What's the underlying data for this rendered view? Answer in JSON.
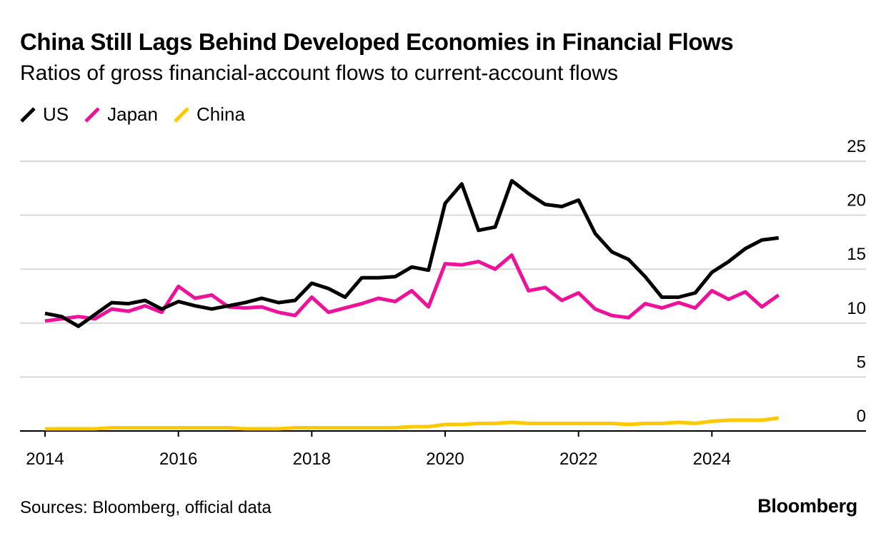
{
  "header": {
    "title": "China Still Lags Behind Developed Economies in Financial Flows",
    "subtitle": "Ratios of gross financial-account flows to current-account flows"
  },
  "legend": {
    "items": [
      {
        "label": "US",
        "color": "#000000"
      },
      {
        "label": "Japan",
        "color": "#ee1199"
      },
      {
        "label": "China",
        "color": "#ffc800"
      }
    ]
  },
  "footer": {
    "source": "Sources: Bloomberg, official data",
    "logo": "Bloomberg"
  },
  "chart_data": {
    "type": "line",
    "title": "China Still Lags Behind Developed Economies in Financial Flows",
    "subtitle": "Ratios of gross financial-account flows to current-account flows",
    "xlabel": "",
    "ylabel": "",
    "xlim": [
      2014.0,
      2026.0
    ],
    "ylim": [
      0,
      25
    ],
    "y_ticks": [
      0,
      5,
      10,
      15,
      20,
      25
    ],
    "x_ticks": [
      2014,
      2016,
      2018,
      2020,
      2022,
      2024
    ],
    "y_axis_position": "right",
    "grid": "horizontal",
    "legend_position": "top-left",
    "x": [
      2014.0,
      2014.25,
      2014.5,
      2014.75,
      2015.0,
      2015.25,
      2015.5,
      2015.75,
      2016.0,
      2016.25,
      2016.5,
      2016.75,
      2017.0,
      2017.25,
      2017.5,
      2017.75,
      2018.0,
      2018.25,
      2018.5,
      2018.75,
      2019.0,
      2019.25,
      2019.5,
      2019.75,
      2020.0,
      2020.25,
      2020.5,
      2020.75,
      2021.0,
      2021.25,
      2021.5,
      2021.75,
      2022.0,
      2022.25,
      2022.5,
      2022.75,
      2023.0,
      2023.25,
      2023.5,
      2023.75,
      2024.0,
      2024.25,
      2024.5,
      2024.75,
      2025.0,
      2025.25
    ],
    "series": [
      {
        "name": "US",
        "color": "#000000",
        "values": [
          10.9,
          10.6,
          9.7,
          10.8,
          11.9,
          11.8,
          12.1,
          11.3,
          12.0,
          11.6,
          11.3,
          11.6,
          11.9,
          12.3,
          11.9,
          12.1,
          13.7,
          13.2,
          12.4,
          14.2,
          14.2,
          14.3,
          15.2,
          14.9,
          21.1,
          22.9,
          18.6,
          18.9,
          23.2,
          22.0,
          21.0,
          20.8,
          21.4,
          18.3,
          16.6,
          15.9,
          14.3,
          12.4,
          12.4,
          12.8,
          14.7,
          15.7,
          16.9,
          17.7,
          17.9,
          null
        ]
      },
      {
        "name": "Japan",
        "color": "#ee1199",
        "values": [
          10.2,
          10.4,
          10.6,
          10.4,
          11.3,
          11.1,
          11.6,
          11.0,
          13.4,
          12.3,
          12.6,
          11.5,
          11.4,
          11.5,
          11.0,
          10.7,
          12.4,
          11.0,
          11.4,
          11.8,
          12.3,
          12.0,
          13.0,
          11.5,
          15.5,
          15.4,
          15.7,
          15.0,
          16.3,
          13.0,
          13.3,
          12.1,
          12.8,
          11.3,
          10.7,
          10.5,
          11.8,
          11.4,
          11.9,
          11.4,
          13.0,
          12.2,
          12.9,
          11.5,
          12.6,
          null
        ]
      },
      {
        "name": "China",
        "color": "#ffc800",
        "values": [
          0.2,
          0.2,
          0.2,
          0.2,
          0.3,
          0.3,
          0.3,
          0.3,
          0.3,
          0.3,
          0.3,
          0.3,
          0.2,
          0.2,
          0.2,
          0.3,
          0.3,
          0.3,
          0.3,
          0.3,
          0.3,
          0.3,
          0.4,
          0.4,
          0.6,
          0.6,
          0.7,
          0.7,
          0.8,
          0.7,
          0.7,
          0.7,
          0.7,
          0.7,
          0.7,
          0.6,
          0.7,
          0.7,
          0.8,
          0.7,
          0.9,
          1.0,
          1.0,
          1.0,
          1.2,
          null
        ]
      }
    ]
  }
}
